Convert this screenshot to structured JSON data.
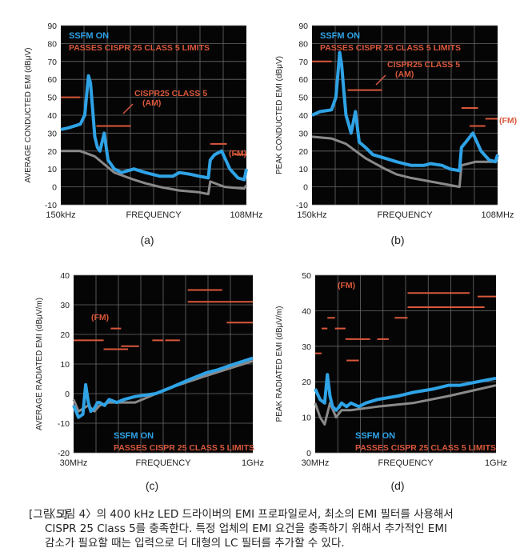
{
  "colors": {
    "panel": "#050505",
    "grid": "#6a6a6a",
    "ssfm": "#2fa3e6",
    "baseline": "#8a8a8a",
    "limit": "#d9583b",
    "axis_text": "#222222"
  },
  "chart_data": [
    {
      "panel_label": "(a)",
      "type": "line",
      "ylabel": "AVERAGE CONDUCTED EMI (dBμV)",
      "xlabel": "FREQUENCY",
      "x_start": "150kHz",
      "x_end": "108MHz",
      "xscale": "log",
      "ylim": [
        -10,
        90
      ],
      "yticks": [
        -10,
        0,
        10,
        20,
        30,
        40,
        50,
        60,
        70,
        80,
        90
      ],
      "legend_series": "SSFM ON",
      "legend_note": "PASSES CISPR 25 CLASS 5 LIMITS",
      "annotation": "CISPR25 CLASS 5 (AM)",
      "annotation_lines": [
        "CISPR25 CLASS 5",
        "(AM)"
      ],
      "fm_label": "(FM)",
      "grid": true,
      "limit_segments": [
        {
          "f_start_mhz": 0.15,
          "f_end_mhz": 0.3,
          "db": 50
        },
        {
          "f_start_mhz": 0.53,
          "f_end_mhz": 1.8,
          "db": 34
        },
        {
          "f_start_mhz": 30,
          "f_end_mhz": 54,
          "db": 24
        },
        {
          "f_start_mhz": 70,
          "f_end_mhz": 108,
          "db": 18
        }
      ],
      "series": [
        {
          "name": "SSFM ON",
          "freq_mhz": [
            0.15,
            0.2,
            0.3,
            0.35,
            0.4,
            0.43,
            0.46,
            0.5,
            0.55,
            0.6,
            0.7,
            0.8,
            1,
            1.3,
            2,
            3,
            5,
            8,
            10,
            15,
            20,
            28,
            30,
            35,
            45,
            60,
            80,
            100,
            108
          ],
          "db": [
            32,
            33,
            35,
            40,
            62,
            58,
            45,
            28,
            22,
            20,
            30,
            15,
            10,
            8,
            10,
            8,
            6,
            6,
            8,
            7,
            6,
            5,
            15,
            18,
            20,
            10,
            5,
            4,
            10
          ]
        },
        {
          "name": "",
          "freq_mhz": [
            0.15,
            0.3,
            0.5,
            1,
            2,
            3,
            5,
            10,
            20,
            28,
            30,
            50,
            100,
            108
          ],
          "db": [
            20,
            20,
            17,
            8,
            4,
            2,
            0,
            -2,
            -3,
            -4,
            3,
            0,
            -1,
            1
          ]
        }
      ]
    },
    {
      "panel_label": "(b)",
      "type": "line",
      "ylabel": "PEAK CONDUCTED EMI (dBμV)",
      "xlabel": "FREQUENCY",
      "x_start": "150kHz",
      "x_end": "108MHz",
      "xscale": "log",
      "ylim": [
        -10,
        90
      ],
      "yticks": [
        -10,
        0,
        10,
        20,
        30,
        40,
        50,
        60,
        70,
        80,
        90
      ],
      "legend_series": "SSFM ON",
      "legend_note": "PASSES CISPR 25 CLASS 5 LIMITS",
      "annotation": "CISPR25 CLASS 5 (AM)",
      "annotation_lines": [
        "CISPR25 CLASS 5",
        "(AM)"
      ],
      "fm_label": "(FM)",
      "grid": true,
      "limit_segments": [
        {
          "f_start_mhz": 0.15,
          "f_end_mhz": 0.3,
          "db": 70
        },
        {
          "f_start_mhz": 0.53,
          "f_end_mhz": 1.8,
          "db": 54
        },
        {
          "f_start_mhz": 30,
          "f_end_mhz": 54,
          "db": 44
        },
        {
          "f_start_mhz": 40,
          "f_end_mhz": 70,
          "db": 34
        },
        {
          "f_start_mhz": 70,
          "f_end_mhz": 108,
          "db": 38
        }
      ],
      "series": [
        {
          "name": "SSFM ON",
          "freq_mhz": [
            0.15,
            0.2,
            0.3,
            0.35,
            0.4,
            0.43,
            0.46,
            0.5,
            0.55,
            0.6,
            0.7,
            0.8,
            1,
            1.3,
            2,
            3,
            5,
            8,
            10,
            15,
            20,
            28,
            30,
            35,
            45,
            60,
            80,
            100,
            108
          ],
          "db": [
            40,
            42,
            43,
            50,
            75,
            68,
            55,
            40,
            35,
            30,
            42,
            25,
            22,
            18,
            16,
            14,
            12,
            12,
            13,
            12,
            10,
            9,
            22,
            25,
            30,
            20,
            15,
            14,
            18
          ]
        },
        {
          "name": "",
          "freq_mhz": [
            0.15,
            0.3,
            0.5,
            1,
            2,
            3,
            5,
            10,
            20,
            28,
            30,
            50,
            100,
            108
          ],
          "db": [
            28,
            27,
            24,
            16,
            10,
            7,
            5,
            3,
            1,
            0,
            12,
            14,
            14,
            16
          ]
        }
      ]
    },
    {
      "panel_label": "(c)",
      "type": "line",
      "ylabel": "AVERAGE RADIATED EMI (dBμV/m)",
      "xlabel": "FREQUENCY",
      "x_start": "30MHz",
      "x_end": "1GHz",
      "xscale": "log",
      "ylim": [
        -20,
        40
      ],
      "yticks": [
        -20,
        -10,
        0,
        10,
        20,
        30,
        40
      ],
      "legend_series": "SSFM ON",
      "legend_note": "PASSES CISPR 25 CLASS 5 LIMITS",
      "fm_label": "(FM)",
      "grid": true,
      "limit_segments": [
        {
          "f_start_mhz": 30,
          "f_end_mhz": 54,
          "db": 18
        },
        {
          "f_start_mhz": 54,
          "f_end_mhz": 70,
          "db": 15
        },
        {
          "f_start_mhz": 70,
          "f_end_mhz": 87,
          "db": 15
        },
        {
          "f_start_mhz": 62,
          "f_end_mhz": 76,
          "db": 22
        },
        {
          "f_start_mhz": 76,
          "f_end_mhz": 108,
          "db": 16
        },
        {
          "f_start_mhz": 140,
          "f_end_mhz": 174,
          "db": 18
        },
        {
          "f_start_mhz": 180,
          "f_end_mhz": 240,
          "db": 18
        },
        {
          "f_start_mhz": 280,
          "f_end_mhz": 550,
          "db": 35
        },
        {
          "f_start_mhz": 280,
          "f_end_mhz": 1000,
          "db": 31
        },
        {
          "f_start_mhz": 600,
          "f_end_mhz": 1000,
          "db": 24
        }
      ],
      "series": [
        {
          "name": "SSFM ON",
          "freq_mhz": [
            30,
            33,
            36,
            38,
            40,
            42,
            45,
            48,
            50,
            55,
            60,
            70,
            80,
            100,
            150,
            200,
            300,
            400,
            500,
            700,
            1000
          ],
          "db": [
            -4,
            -8,
            -7,
            3,
            -3,
            -6,
            -5,
            -3,
            -3,
            -4,
            -2,
            -3,
            -2,
            -1,
            0,
            2,
            5,
            7,
            8,
            10,
            12
          ]
        },
        {
          "name": "",
          "freq_mhz": [
            30,
            33,
            40,
            45,
            50,
            60,
            100,
            200,
            400,
            1000
          ],
          "db": [
            -2,
            -6,
            -4,
            -6,
            -4,
            -3,
            -3,
            2,
            6,
            11
          ]
        }
      ]
    },
    {
      "panel_label": "(d)",
      "type": "line",
      "ylabel": "PEAK RADIATED EMI (dBμV/m)",
      "xlabel": "FREQUENCY",
      "x_start": "30MHz",
      "x_end": "1GHz",
      "xscale": "log",
      "ylim": [
        0,
        50
      ],
      "yticks": [
        0,
        10,
        20,
        30,
        40,
        50
      ],
      "legend_series": "SSFM ON",
      "legend_note": "PASSES CISPR 25 CLASS 5 LIMITS",
      "fm_label": "(FM)",
      "grid": true,
      "limit_segments": [
        {
          "f_start_mhz": 30,
          "f_end_mhz": 34,
          "db": 28
        },
        {
          "f_start_mhz": 34,
          "f_end_mhz": 38,
          "db": 35
        },
        {
          "f_start_mhz": 38,
          "f_end_mhz": 44,
          "db": 38
        },
        {
          "f_start_mhz": 44,
          "f_end_mhz": 54,
          "db": 35
        },
        {
          "f_start_mhz": 54,
          "f_end_mhz": 70,
          "db": 32
        },
        {
          "f_start_mhz": 55,
          "f_end_mhz": 70,
          "db": 26
        },
        {
          "f_start_mhz": 70,
          "f_end_mhz": 87,
          "db": 32
        },
        {
          "f_start_mhz": 100,
          "f_end_mhz": 125,
          "db": 32
        },
        {
          "f_start_mhz": 140,
          "f_end_mhz": 180,
          "db": 38
        },
        {
          "f_start_mhz": 180,
          "f_end_mhz": 600,
          "db": 45
        },
        {
          "f_start_mhz": 180,
          "f_end_mhz": 800,
          "db": 41
        },
        {
          "f_start_mhz": 700,
          "f_end_mhz": 1000,
          "db": 44
        }
      ],
      "series": [
        {
          "name": "SSFM ON",
          "freq_mhz": [
            30,
            33,
            36,
            38,
            40,
            42,
            45,
            48,
            50,
            55,
            60,
            70,
            80,
            100,
            150,
            200,
            300,
            400,
            500,
            700,
            1000
          ],
          "db": [
            18,
            15,
            14,
            22,
            16,
            13,
            12,
            13,
            14,
            13,
            14,
            13,
            14,
            15,
            16,
            17,
            18,
            19,
            19,
            20,
            21
          ]
        },
        {
          "name": "",
          "freq_mhz": [
            30,
            33,
            36,
            40,
            45,
            50,
            60,
            100,
            200,
            400,
            1000
          ],
          "db": [
            14,
            10,
            8,
            14,
            10,
            12,
            12,
            13,
            14,
            16,
            19
          ]
        }
      ]
    }
  ],
  "caption": {
    "lead": "[그림 5]",
    "lines": [
      "〈그림 4〉의 400 kHz LED 드라이버의 EMI 프로파일로서, 최소의 EMI 필터를 사용해서",
      "CISPR 25 Class 5를 충족한다. 특정 업체의 EMI 요건을 충족하기 위해서 추가적인 EMI",
      "감소가 필요할 때는 입력으로 더 대형의 LC 필터를 추가할 수 있다."
    ]
  }
}
